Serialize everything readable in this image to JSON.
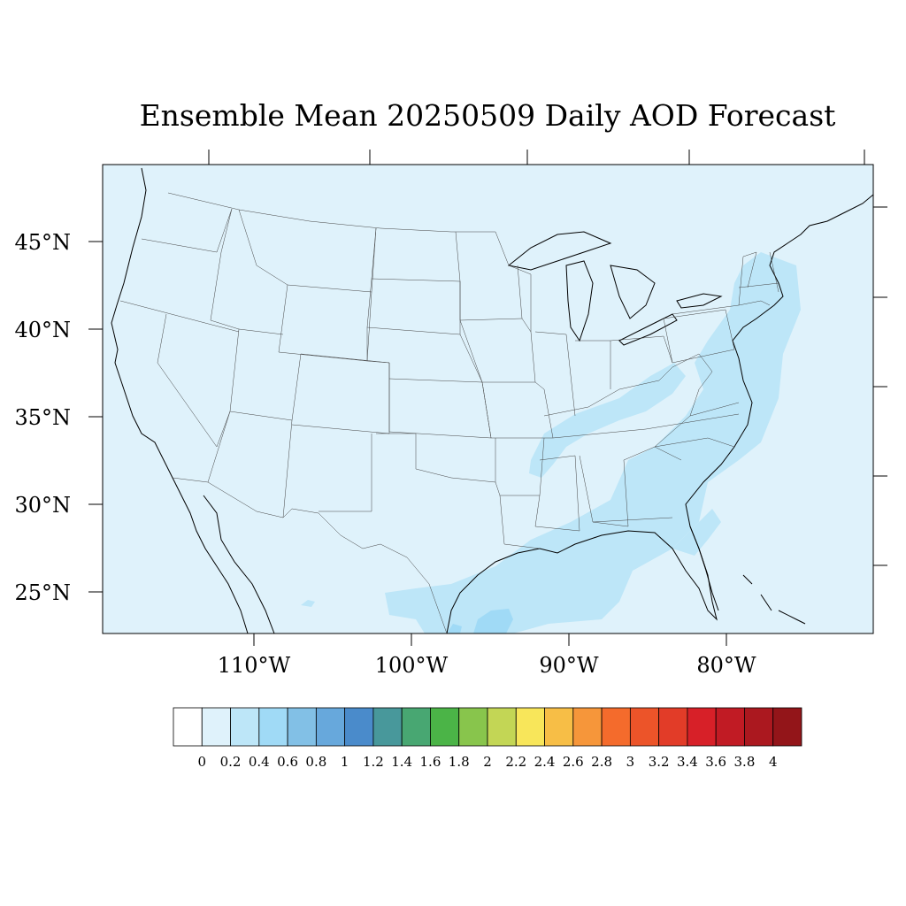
{
  "title": "Ensemble Mean 20250509 Daily AOD Forecast",
  "map": {
    "projection": "lambert-conformal",
    "region": "Contiguous United States",
    "background_color": "#dff2fb",
    "lon_labels": [
      "110°W",
      "100°W",
      "90°W",
      "80°W"
    ],
    "lat_labels": [
      "45°N",
      "40°N",
      "35°N",
      "30°N",
      "25°N"
    ]
  },
  "aod_field": {
    "variable": "AOD",
    "levels_present": [
      {
        "range": "0.2-0.4",
        "color": "#dff2fb",
        "extent": "most of domain"
      },
      {
        "range": "0.4-0.6",
        "color": "#bde6f8",
        "extent": "Southeast, Gulf of Mexico, Atlantic coast, Ohio Valley band"
      },
      {
        "range": "0.6-0.8",
        "color": "#a0daf6",
        "extent": "small areas over western Gulf of Mexico"
      }
    ]
  },
  "colorbar": {
    "colors": [
      "#ffffff",
      "#dff2fb",
      "#bde6f8",
      "#a0daf6",
      "#82c0e6",
      "#67a8dc",
      "#4a8bcb",
      "#48989b",
      "#48a772",
      "#4bb447",
      "#88c54c",
      "#c3d655",
      "#f8e65a",
      "#f7be46",
      "#f6963a",
      "#f46b2c",
      "#ec5429",
      "#e23c28",
      "#d72028",
      "#c11b24",
      "#ab181f",
      "#931519"
    ],
    "labels": [
      "0",
      "0.2",
      "0.4",
      "0.6",
      "0.8",
      "1",
      "1.2",
      "1.4",
      "1.6",
      "1.8",
      "2",
      "2.2",
      "2.4",
      "2.6",
      "2.8",
      "3",
      "3.2",
      "3.4",
      "3.6",
      "3.8",
      "4"
    ]
  }
}
